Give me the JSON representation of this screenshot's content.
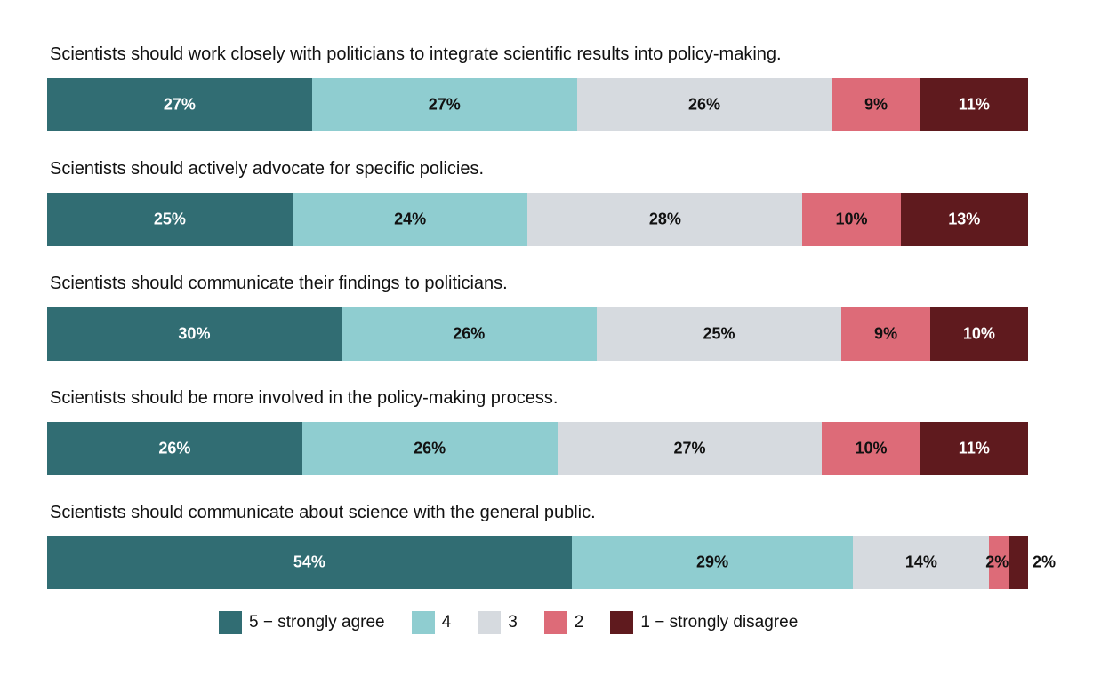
{
  "chart_data": {
    "type": "bar",
    "orientation": "horizontal-stacked-100",
    "categories": [
      "Scientists should work closely with politicians to integrate scientific results into policy-making.",
      "Scientists should actively advocate for specific policies.",
      "Scientists should communicate their findings to politicians.",
      "Scientists should be more involved in the policy-making process.",
      "Scientists should communicate about science with the general public."
    ],
    "series": [
      {
        "name": "5 − strongly agree",
        "color": "#316d73",
        "label_color": "#ffffff",
        "values": [
          27,
          25,
          30,
          26,
          54
        ]
      },
      {
        "name": "4",
        "color": "#8fcdd0",
        "label_color": "#111111",
        "values": [
          27,
          24,
          26,
          26,
          29
        ]
      },
      {
        "name": "3",
        "color": "#d6dadf",
        "label_color": "#111111",
        "values": [
          26,
          28,
          25,
          27,
          14
        ]
      },
      {
        "name": "2",
        "color": "#dd6b78",
        "label_color": "#111111",
        "values": [
          9,
          10,
          9,
          10,
          2
        ]
      },
      {
        "name": "1 − strongly disagree",
        "color": "#5f1a1e",
        "label_color": "#ffffff",
        "values": [
          11,
          13,
          10,
          11,
          2
        ]
      }
    ],
    "labels": [
      [
        "27%",
        "27%",
        "26%",
        "9%",
        "11%"
      ],
      [
        "25%",
        "24%",
        "28%",
        "10%",
        "13%"
      ],
      [
        "30%",
        "26%",
        "25%",
        "9%",
        "10%"
      ],
      [
        "26%",
        "26%",
        "27%",
        "10%",
        "11%"
      ],
      [
        "54%",
        "29%",
        "14%",
        "2%",
        "2%"
      ]
    ],
    "title": "",
    "xlabel": "",
    "ylabel": "",
    "xlim": [
      0,
      100
    ],
    "grid": false,
    "legend_position": "bottom"
  }
}
